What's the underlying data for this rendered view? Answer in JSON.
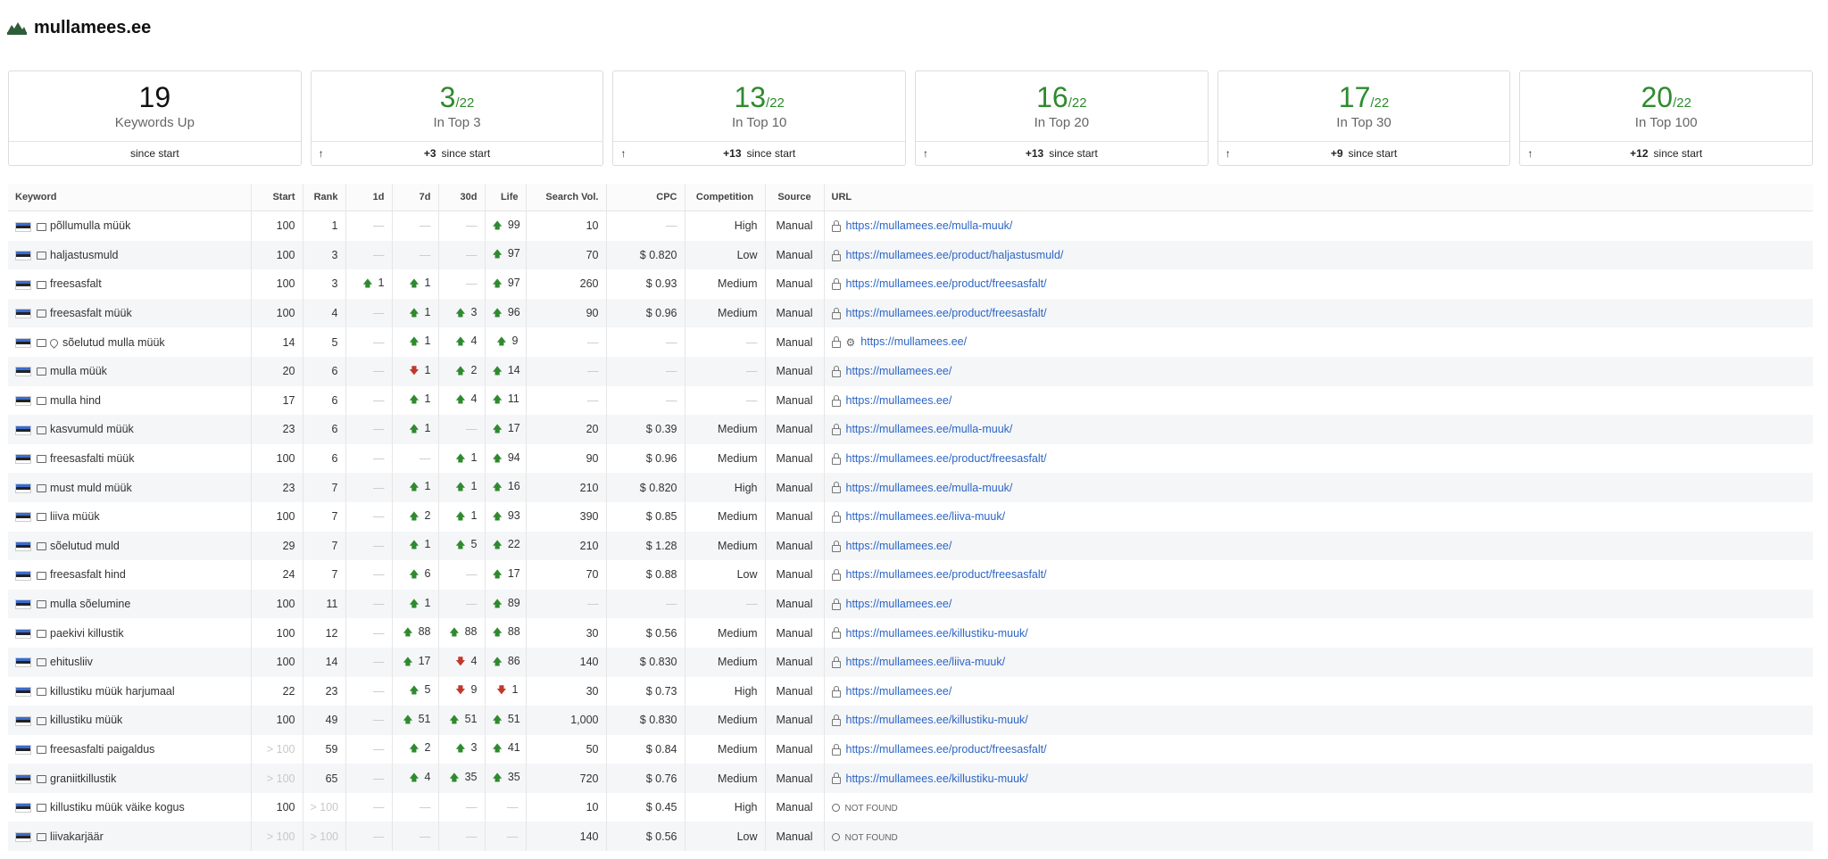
{
  "site": {
    "name": "mullamees.ee",
    "logo_icon": "mountain-logo-icon"
  },
  "stats": [
    {
      "value": "19",
      "denominator": "",
      "label": "Keywords Up",
      "change": "",
      "footer": "since start",
      "arrow": false
    },
    {
      "value": "3",
      "denominator": "/22",
      "label": "In Top 3",
      "change": "+3",
      "footer": "since start",
      "arrow": true
    },
    {
      "value": "13",
      "denominator": "/22",
      "label": "In Top 10",
      "change": "+13",
      "footer": "since start",
      "arrow": true
    },
    {
      "value": "16",
      "denominator": "/22",
      "label": "In Top 20",
      "change": "+13",
      "footer": "since start",
      "arrow": true
    },
    {
      "value": "17",
      "denominator": "/22",
      "label": "In Top 30",
      "change": "+9",
      "footer": "since start",
      "arrow": true
    },
    {
      "value": "20",
      "denominator": "/22",
      "label": "In Top 100",
      "change": "+12",
      "footer": "since start",
      "arrow": true
    }
  ],
  "table": {
    "headers": [
      "Keyword",
      "Start",
      "Rank",
      "1d",
      "7d",
      "30d",
      "Life",
      "Search Vol.",
      "CPC",
      "Competition",
      "Source",
      "URL"
    ],
    "rows": [
      {
        "keyword": "põllumulla müük",
        "start": "100",
        "rank": "1",
        "d1": "",
        "d7": "",
        "d30": "",
        "life": "▲99",
        "vol": "10",
        "cpc": "",
        "comp": "High",
        "source": "Manual",
        "url": "https://mullamees.ee/mulla-muuk/",
        "pin": false,
        "gear": false
      },
      {
        "keyword": "haljastusmuld",
        "start": "100",
        "rank": "3",
        "d1": "",
        "d7": "",
        "d30": "",
        "life": "▲97",
        "vol": "70",
        "cpc": "$ 0.820",
        "comp": "Low",
        "source": "Manual",
        "url": "https://mullamees.ee/product/haljastusmuld/",
        "pin": false,
        "gear": false
      },
      {
        "keyword": "freesasfalt",
        "start": "100",
        "rank": "3",
        "d1": "▲1",
        "d7": "▲1",
        "d30": "",
        "life": "▲97",
        "vol": "260",
        "cpc": "$ 0.93",
        "comp": "Medium",
        "source": "Manual",
        "url": "https://mullamees.ee/product/freesasfalt/",
        "pin": false,
        "gear": false
      },
      {
        "keyword": "freesasfalt müük",
        "start": "100",
        "rank": "4",
        "d1": "",
        "d7": "▲1",
        "d30": "▲3",
        "life": "▲96",
        "vol": "90",
        "cpc": "$ 0.96",
        "comp": "Medium",
        "source": "Manual",
        "url": "https://mullamees.ee/product/freesasfalt/",
        "pin": false,
        "gear": false
      },
      {
        "keyword": "sõelutud mulla müük",
        "start": "14",
        "rank": "5",
        "d1": "",
        "d7": "▲1",
        "d30": "▲4",
        "life": "▲9",
        "vol": "",
        "cpc": "",
        "comp": "",
        "source": "Manual",
        "url": "https://mullamees.ee/",
        "pin": true,
        "gear": true
      },
      {
        "keyword": "mulla müük",
        "start": "20",
        "rank": "6",
        "d1": "",
        "d7": "▼1",
        "d30": "▲2",
        "life": "▲14",
        "vol": "",
        "cpc": "",
        "comp": "",
        "source": "Manual",
        "url": "https://mullamees.ee/",
        "pin": false,
        "gear": false
      },
      {
        "keyword": "mulla hind",
        "start": "17",
        "rank": "6",
        "d1": "",
        "d7": "▲1",
        "d30": "▲4",
        "life": "▲11",
        "vol": "",
        "cpc": "",
        "comp": "",
        "source": "Manual",
        "url": "https://mullamees.ee/",
        "pin": false,
        "gear": false
      },
      {
        "keyword": "kasvumuld müük",
        "start": "23",
        "rank": "6",
        "d1": "",
        "d7": "▲1",
        "d30": "",
        "life": "▲17",
        "vol": "20",
        "cpc": "$ 0.39",
        "comp": "Medium",
        "source": "Manual",
        "url": "https://mullamees.ee/mulla-muuk/",
        "pin": false,
        "gear": false
      },
      {
        "keyword": "freesasfalti müük",
        "start": "100",
        "rank": "6",
        "d1": "",
        "d7": "",
        "d30": "▲1",
        "life": "▲94",
        "vol": "90",
        "cpc": "$ 0.96",
        "comp": "Medium",
        "source": "Manual",
        "url": "https://mullamees.ee/product/freesasfalt/",
        "pin": false,
        "gear": false
      },
      {
        "keyword": "must muld müük",
        "start": "23",
        "rank": "7",
        "d1": "",
        "d7": "▲1",
        "d30": "▲1",
        "life": "▲16",
        "vol": "210",
        "cpc": "$ 0.820",
        "comp": "High",
        "source": "Manual",
        "url": "https://mullamees.ee/mulla-muuk/",
        "pin": false,
        "gear": false
      },
      {
        "keyword": "liiva müük",
        "start": "100",
        "rank": "7",
        "d1": "",
        "d7": "▲2",
        "d30": "▲1",
        "life": "▲93",
        "vol": "390",
        "cpc": "$ 0.85",
        "comp": "Medium",
        "source": "Manual",
        "url": "https://mullamees.ee/liiva-muuk/",
        "pin": false,
        "gear": false
      },
      {
        "keyword": "sõelutud muld",
        "start": "29",
        "rank": "7",
        "d1": "",
        "d7": "▲1",
        "d30": "▲5",
        "life": "▲22",
        "vol": "210",
        "cpc": "$ 1.28",
        "comp": "Medium",
        "source": "Manual",
        "url": "https://mullamees.ee/",
        "pin": false,
        "gear": false
      },
      {
        "keyword": "freesasfalt hind",
        "start": "24",
        "rank": "7",
        "d1": "",
        "d7": "▲6",
        "d30": "",
        "life": "▲17",
        "vol": "70",
        "cpc": "$ 0.88",
        "comp": "Low",
        "source": "Manual",
        "url": "https://mullamees.ee/product/freesasfalt/",
        "pin": false,
        "gear": false
      },
      {
        "keyword": "mulla sõelumine",
        "start": "100",
        "rank": "11",
        "d1": "",
        "d7": "▲1",
        "d30": "",
        "life": "▲89",
        "vol": "",
        "cpc": "",
        "comp": "",
        "source": "Manual",
        "url": "https://mullamees.ee/",
        "pin": false,
        "gear": false
      },
      {
        "keyword": "paekivi killustik",
        "start": "100",
        "rank": "12",
        "d1": "",
        "d7": "▲88",
        "d30": "▲88",
        "life": "▲88",
        "vol": "30",
        "cpc": "$ 0.56",
        "comp": "Medium",
        "source": "Manual",
        "url": "https://mullamees.ee/killustiku-muuk/",
        "pin": false,
        "gear": false
      },
      {
        "keyword": "ehitusliiv",
        "start": "100",
        "rank": "14",
        "d1": "",
        "d7": "▲17",
        "d30": "▼4",
        "life": "▲86",
        "vol": "140",
        "cpc": "$ 0.830",
        "comp": "Medium",
        "source": "Manual",
        "url": "https://mullamees.ee/liiva-muuk/",
        "pin": false,
        "gear": false
      },
      {
        "keyword": "killustiku müük harjumaal",
        "start": "22",
        "rank": "23",
        "d1": "",
        "d7": "▲5",
        "d30": "▼9",
        "life": "▼1",
        "vol": "30",
        "cpc": "$ 0.73",
        "comp": "High",
        "source": "Manual",
        "url": "https://mullamees.ee/",
        "pin": false,
        "gear": false
      },
      {
        "keyword": "killustiku müük",
        "start": "100",
        "rank": "49",
        "d1": "",
        "d7": "▲51",
        "d30": "▲51",
        "life": "▲51",
        "vol": "1,000",
        "cpc": "$ 0.830",
        "comp": "Medium",
        "source": "Manual",
        "url": "https://mullamees.ee/killustiku-muuk/",
        "pin": false,
        "gear": false
      },
      {
        "keyword": "freesasfalti paigaldus",
        "start": "> 100",
        "rank": "59",
        "d1": "",
        "d7": "▲2",
        "d30": "▲3",
        "life": "▲41",
        "vol": "50",
        "cpc": "$ 0.84",
        "comp": "Medium",
        "source": "Manual",
        "url": "https://mullamees.ee/product/freesasfalt/",
        "pin": false,
        "gear": false
      },
      {
        "keyword": "graniitkillustik",
        "start": "> 100",
        "rank": "65",
        "d1": "",
        "d7": "▲4",
        "d30": "▲35",
        "life": "▲35",
        "vol": "720",
        "cpc": "$ 0.76",
        "comp": "Medium",
        "source": "Manual",
        "url": "https://mullamees.ee/killustiku-muuk/",
        "pin": false,
        "gear": false
      },
      {
        "keyword": "killustiku müük väike kogus",
        "start": "100",
        "rank": "> 100",
        "d1": "",
        "d7": "",
        "d30": "",
        "life": "",
        "vol": "10",
        "cpc": "$ 0.45",
        "comp": "High",
        "source": "Manual",
        "url": "NOT FOUND",
        "pin": false,
        "gear": false
      },
      {
        "keyword": "liivakarjäär",
        "start": "> 100",
        "rank": "> 100",
        "d1": "",
        "d7": "",
        "d30": "",
        "life": "",
        "vol": "140",
        "cpc": "$ 0.56",
        "comp": "Low",
        "source": "Manual",
        "url": "NOT FOUND",
        "pin": false,
        "gear": false
      }
    ]
  },
  "colors": {
    "up": "#2f8a2f",
    "down": "#c0392b",
    "link": "#2c65c4"
  }
}
